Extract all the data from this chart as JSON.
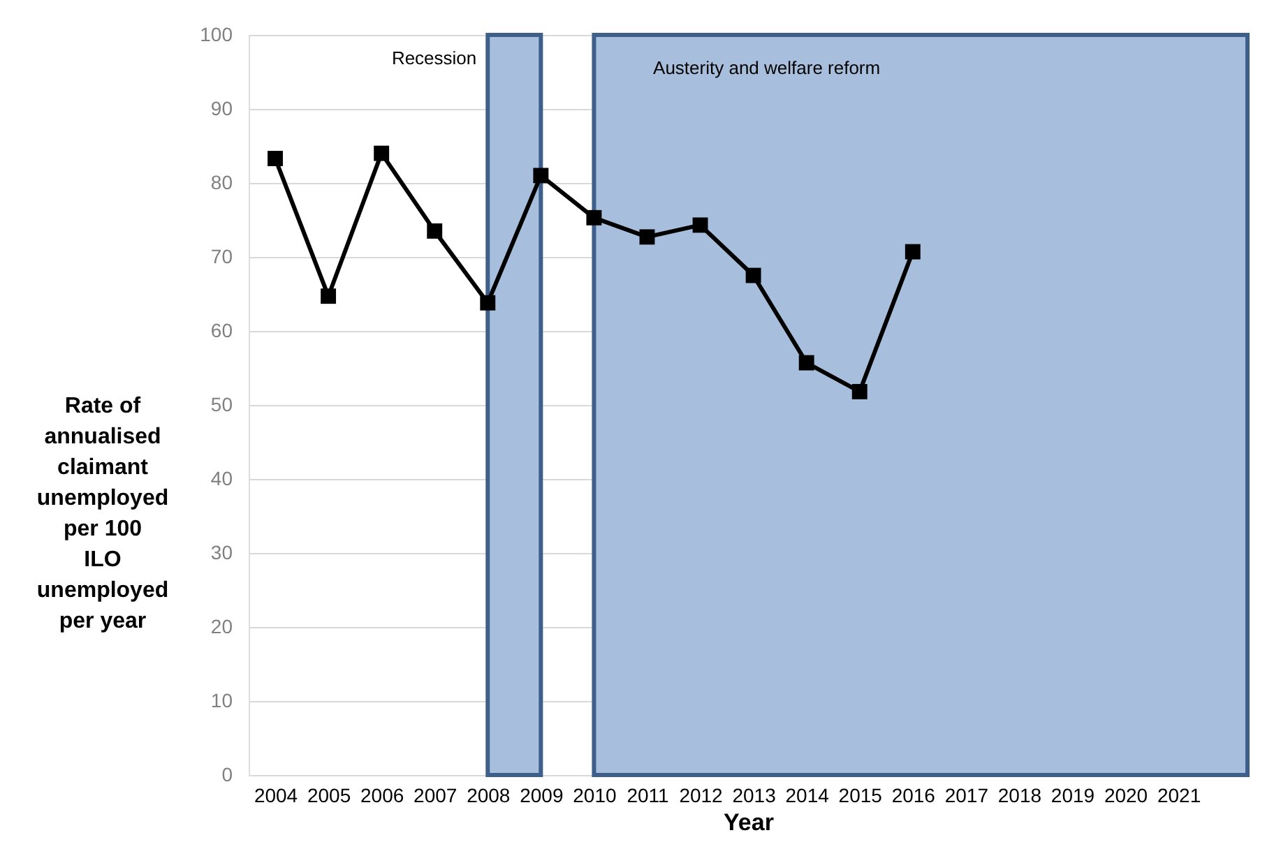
{
  "chart_data": {
    "type": "line",
    "xlabel": "Year",
    "ylabel": "Rate of annualised claimant unemployed per 100 ILO unemployed per year",
    "x": [
      2004,
      2005,
      2006,
      2007,
      2008,
      2009,
      2010,
      2011,
      2012,
      2013,
      2014,
      2015,
      2016
    ],
    "series": [
      {
        "color": "#000000",
        "values": [
          83.3,
          64.7,
          84.0,
          73.5,
          63.8,
          81.0,
          75.3,
          72.7,
          74.3,
          67.5,
          55.7,
          51.8,
          70.7
        ]
      }
    ],
    "xlim": [
      2003.5,
      2022.3
    ],
    "xticks": [
      2004,
      2005,
      2006,
      2007,
      2008,
      2009,
      2010,
      2011,
      2012,
      2013,
      2014,
      2015,
      2016,
      2017,
      2018,
      2019,
      2020,
      2021
    ],
    "ylim": [
      0,
      100
    ],
    "yticks": [
      0,
      10,
      20,
      30,
      40,
      50,
      60,
      70,
      80,
      90,
      100
    ],
    "bands": [
      {
        "axis": "x",
        "from": 2008,
        "to": 2009,
        "label": "Recession",
        "color": "#a7bfdd"
      },
      {
        "axis": "x",
        "from": 2010,
        "to": 2022.3,
        "label": "Austerity and welfare reform",
        "color": "#a7bfdd"
      }
    ],
    "grid": "y",
    "marker": "square",
    "line_style": "solid"
  }
}
